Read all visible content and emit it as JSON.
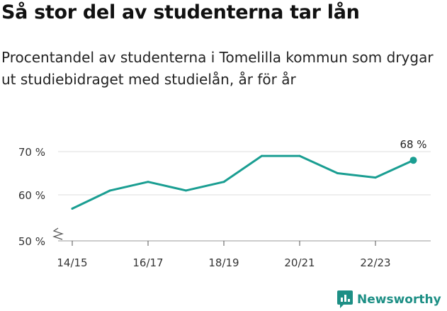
{
  "title": "Så stor del av studenterna tar lån",
  "subtitle": "Procentandel av studenterna i Tomelilla kommun som drygar ut studiebidraget med studielån, år för år",
  "brand": {
    "name": "Newsworthy",
    "icon": "newsworthy-logo-icon"
  },
  "colors": {
    "line": "#1a9e92",
    "grid": "#dddddd",
    "brand": "#1d8f85"
  },
  "chart_data": {
    "type": "line",
    "title": "Så stor del av studenterna tar lån",
    "xlabel": "",
    "ylabel": "",
    "x": [
      "14/15",
      "15/16",
      "16/17",
      "17/18",
      "18/19",
      "19/20",
      "20/21",
      "21/22",
      "22/23",
      "23/24"
    ],
    "x_tick_labels": [
      "14/15",
      "16/17",
      "18/19",
      "20/21",
      "22/23"
    ],
    "series": [
      {
        "values": [
          57,
          61,
          63,
          61,
          63,
          69,
          69,
          65,
          64,
          68
        ]
      }
    ],
    "ylim": [
      50,
      70
    ],
    "y_ticks": [
      50,
      60,
      70
    ],
    "y_tick_labels": [
      "50 %",
      "60 %",
      "70 %"
    ],
    "axis_break": true,
    "grid": true,
    "last_point_label": "68 %"
  }
}
